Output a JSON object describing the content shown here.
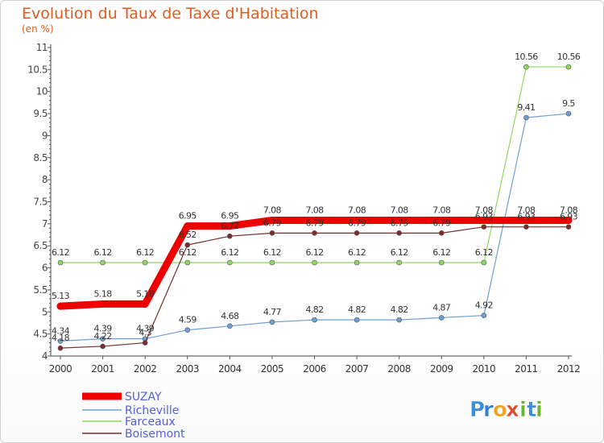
{
  "chart_data": {
    "type": "line",
    "title": "Evolution du Taux de Taxe d'Habitation",
    "subtitle": "(en %)",
    "xlabel": "",
    "ylabel": "",
    "x": [
      "2000",
      "2001",
      "2002",
      "2003",
      "2004",
      "2005",
      "2006",
      "2007",
      "2008",
      "2009",
      "2010",
      "2011",
      "2012"
    ],
    "ylim": [
      4,
      11
    ],
    "yticks": [
      "4",
      "4.5",
      "5",
      "5.5",
      "6",
      "6.5",
      "7",
      "7.5",
      "8",
      "8.5",
      "9",
      "9.5",
      "10",
      "10.5",
      "11"
    ],
    "grid": false,
    "legend_position": "bottom-left",
    "series": [
      {
        "name": "SUZAY",
        "color": "#ee0000",
        "values": [
          5.13,
          5.18,
          5.18,
          6.95,
          6.95,
          7.08,
          7.08,
          7.08,
          7.08,
          7.08,
          7.08,
          7.08,
          7.08
        ],
        "labels": [
          "5.13",
          "5.18",
          "5.18",
          "6.95",
          "6.95",
          "7.08",
          "7.08",
          "7.08",
          "7.08",
          "7.08",
          "7.08",
          "7.08",
          "7.08"
        ]
      },
      {
        "name": "Richeville",
        "color": "#6fa0d2",
        "values": [
          4.34,
          4.39,
          4.39,
          4.59,
          4.68,
          4.77,
          4.82,
          4.82,
          4.82,
          4.87,
          4.92,
          9.41,
          9.5
        ],
        "labels": [
          "4.34",
          "4.39",
          "4.39",
          "4.59",
          "4.68",
          "4.77",
          "4.82",
          "4.82",
          "4.82",
          "4.87",
          "4.92",
          "9.41",
          "9.5"
        ]
      },
      {
        "name": "Farceaux",
        "color": "#8fd862",
        "values": [
          6.12,
          6.12,
          6.12,
          6.12,
          6.12,
          6.12,
          6.12,
          6.12,
          6.12,
          6.12,
          6.12,
          10.56,
          10.56
        ],
        "labels": [
          "6.12",
          "6.12",
          "6.12",
          "6.12",
          "6.12",
          "6.12",
          "6.12",
          "6.12",
          "6.12",
          "6.12",
          "6.12",
          "10.56",
          "10.56"
        ]
      },
      {
        "name": "Boisemont",
        "color": "#7a2d2d",
        "values": [
          4.18,
          4.22,
          4.3,
          6.52,
          6.72,
          6.79,
          6.79,
          6.79,
          6.79,
          6.79,
          6.93,
          6.93,
          6.93
        ],
        "labels": [
          "4.18",
          "4.22",
          "4.3",
          "6.52",
          "6.72",
          "6.79",
          "6.79",
          "6.79",
          "6.79",
          "6.79",
          "6.93",
          "6.93",
          "6.93"
        ]
      }
    ]
  },
  "logo": {
    "letters": [
      "P",
      "r",
      "o",
      "x",
      "i",
      "t",
      "i"
    ],
    "colors": [
      "#3b8ed8",
      "#2f7fcf",
      "#f2a01e",
      "#e04a2a",
      "#6ab534",
      "#3b8ed8",
      "#6ab534"
    ]
  }
}
